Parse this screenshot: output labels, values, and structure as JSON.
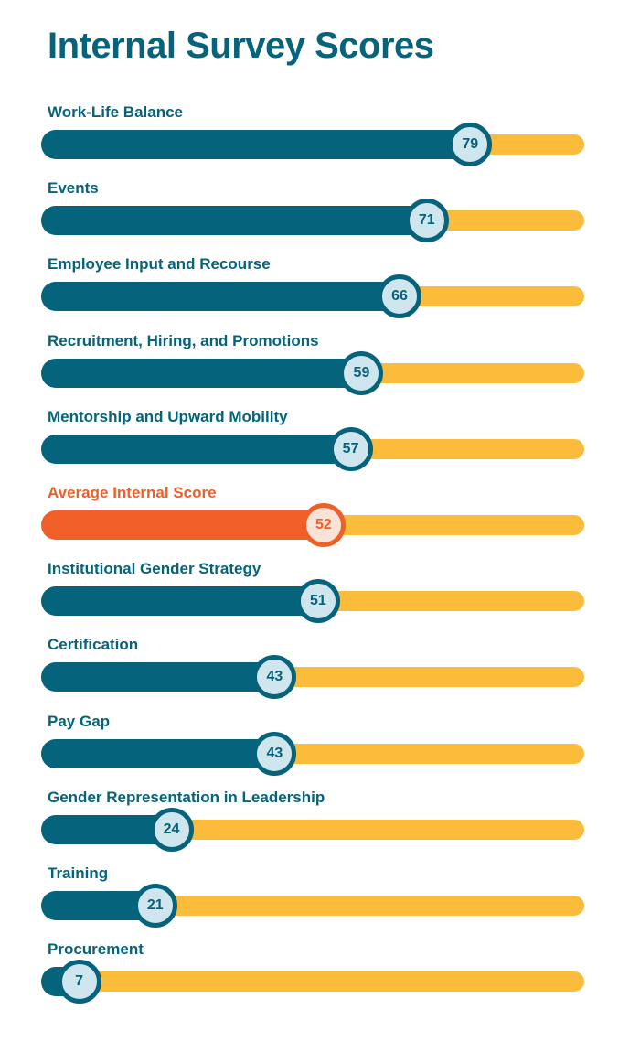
{
  "chart_data": {
    "type": "bar",
    "orientation": "horizontal",
    "title": "Internal Survey Scores",
    "xlim": [
      0,
      100
    ],
    "categories": [
      "Work-Life Balance",
      "Events",
      "Employee Input and Recourse",
      "Recruitment, Hiring, and Promotions",
      "Mentorship and Upward Mobility",
      "Average Internal Score",
      "Institutional Gender Strategy",
      "Certification",
      "Pay Gap",
      "Gender Representation in Leadership",
      "Training",
      "Procurement"
    ],
    "values": [
      79,
      71,
      66,
      59,
      57,
      52,
      51,
      43,
      43,
      24,
      21,
      7
    ],
    "highlight": "Average Internal Score",
    "colors": {
      "bar": "#05637b",
      "track": "#fbbc3b",
      "highlight": "#f05f28",
      "knob_fill": "#cfe6ef",
      "highlight_knob_fill": "#fbe2d7"
    }
  }
}
